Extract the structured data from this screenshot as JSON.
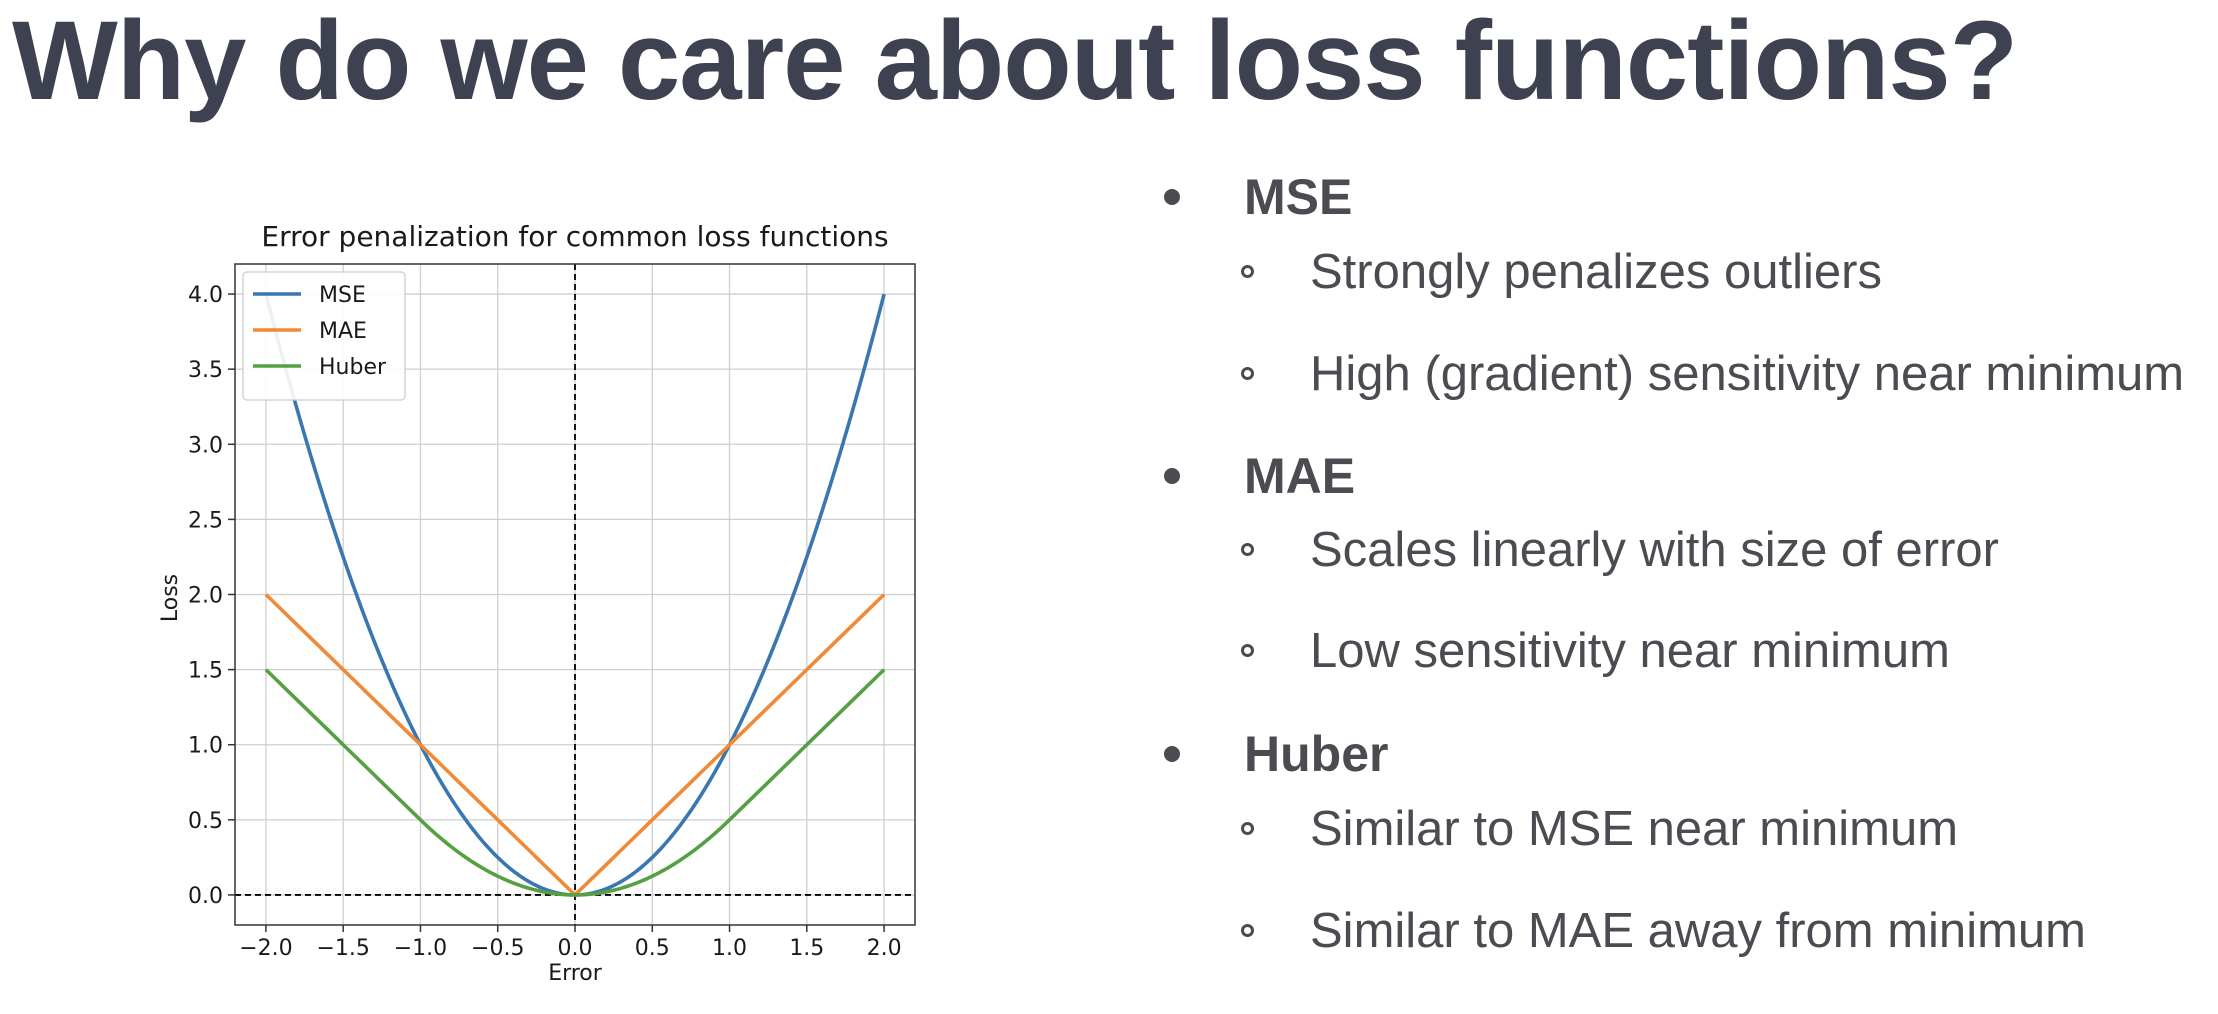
{
  "slide": {
    "title": "Why do we care about loss functions?"
  },
  "bullets": [
    {
      "label": "MSE",
      "subs": [
        "Strongly penalizes outliers",
        "High (gradient) sensitivity near minimum"
      ]
    },
    {
      "label": "MAE",
      "subs": [
        "Scales linearly with size of error",
        "Low sensitivity near minimum"
      ]
    },
    {
      "label": "Huber",
      "subs": [
        "Similar to MSE near minimum",
        "Similar to MAE away from minimum"
      ]
    }
  ],
  "chart_data": {
    "type": "line",
    "title": "Error penalization for common loss functions",
    "xlabel": "Error",
    "ylabel": "Loss",
    "xlim": [
      -2.2,
      2.2
    ],
    "ylim": [
      -0.2,
      4.2
    ],
    "xticks": [
      -2.0,
      -1.5,
      -1.0,
      -0.5,
      0.0,
      0.5,
      1.0,
      1.5,
      2.0
    ],
    "xtick_labels": [
      "−2.0",
      "−1.5",
      "−1.0",
      "−0.5",
      "0.0",
      "0.5",
      "1.0",
      "1.5",
      "2.0"
    ],
    "yticks": [
      0.0,
      0.5,
      1.0,
      1.5,
      2.0,
      2.5,
      3.0,
      3.5,
      4.0
    ],
    "ytick_labels": [
      "0.0",
      "0.5",
      "1.0",
      "1.5",
      "2.0",
      "2.5",
      "3.0",
      "3.5",
      "4.0"
    ],
    "grid": true,
    "legend_position": "top-left",
    "reference_lines": [
      {
        "orientation": "vertical",
        "value": 0.0,
        "style": "dashed",
        "color": "#000000"
      },
      {
        "orientation": "horizontal",
        "value": 0.0,
        "style": "dashed",
        "color": "#000000"
      }
    ],
    "x": [
      -2.0,
      -1.75,
      -1.5,
      -1.25,
      -1.0,
      -0.75,
      -0.5,
      -0.25,
      0.0,
      0.25,
      0.5,
      0.75,
      1.0,
      1.25,
      1.5,
      1.75,
      2.0
    ],
    "series": [
      {
        "name": "MSE",
        "color": "#3a77b0",
        "values": [
          4.0,
          3.0625,
          2.25,
          1.5625,
          1.0,
          0.5625,
          0.25,
          0.0625,
          0.0,
          0.0625,
          0.25,
          0.5625,
          1.0,
          1.5625,
          2.25,
          3.0625,
          4.0
        ]
      },
      {
        "name": "MAE",
        "color": "#f08a36",
        "values": [
          2.0,
          1.75,
          1.5,
          1.25,
          1.0,
          0.75,
          0.5,
          0.25,
          0.0,
          0.25,
          0.5,
          0.75,
          1.0,
          1.25,
          1.5,
          1.75,
          2.0
        ]
      },
      {
        "name": "Huber",
        "color": "#54a042",
        "values": [
          1.5,
          1.25,
          1.0,
          0.75,
          0.5,
          0.28125,
          0.125,
          0.03125,
          0.0,
          0.03125,
          0.125,
          0.28125,
          0.5,
          0.75,
          1.0,
          1.25,
          1.5
        ]
      }
    ]
  }
}
